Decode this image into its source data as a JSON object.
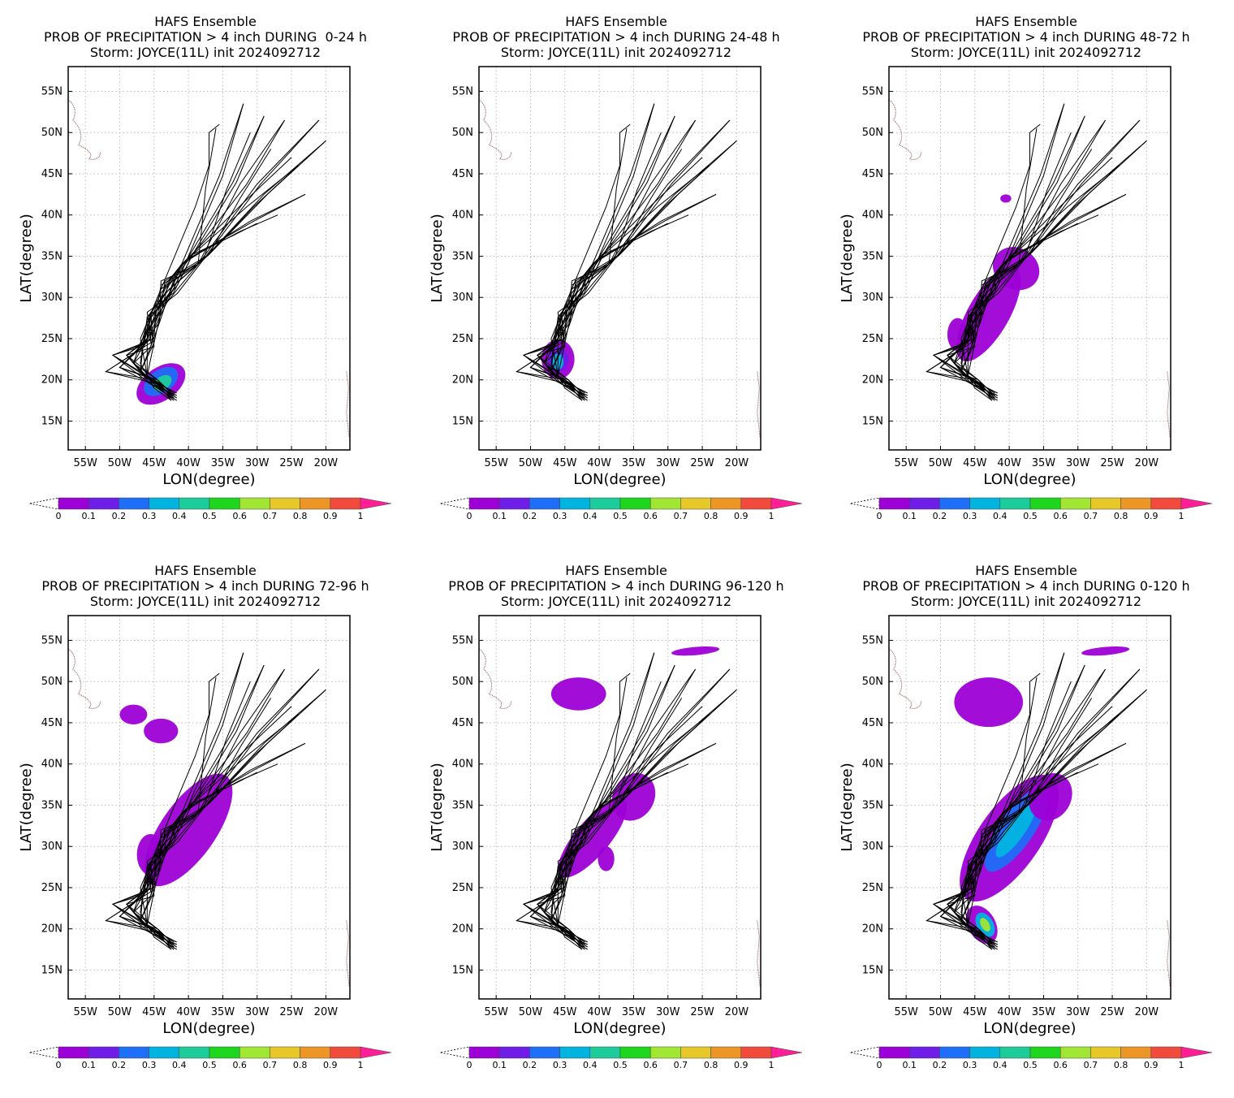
{
  "common": {
    "title_line1": "HAFS Ensemble",
    "title_line3": "Storm: JOYCE(11L) init 2024092712",
    "xlabel": "LON(degree)",
    "ylabel": "LAT(degree)",
    "lat_ticks": [
      "55N",
      "50N",
      "45N",
      "40N",
      "35N",
      "30N",
      "25N",
      "20N",
      "15N"
    ],
    "lon_ticks": [
      "55W",
      "50W",
      "45W",
      "40W",
      "35W",
      "30W",
      "25W",
      "20W"
    ],
    "colorbar_labels": [
      "0",
      "0.1",
      "0.2",
      "0.3",
      "0.4",
      "0.5",
      "0.6",
      "0.7",
      "0.8",
      "0.9",
      "1"
    ],
    "colorbar_colors": [
      "#9d00d6",
      "#6e1ee6",
      "#1f6ef7",
      "#00b4e0",
      "#1ccc9a",
      "#1fd61f",
      "#a0e632",
      "#e6c828",
      "#ec9628",
      "#f04b3c",
      "#ff1e96"
    ]
  },
  "panels": [
    {
      "title_line2": "PROB OF PRECIPITATION > 4 inch DURING  0-24 h"
    },
    {
      "title_line2": "PROB OF PRECIPITATION > 4 inch DURING 24-48 h"
    },
    {
      "title_line2": "PROB OF PRECIPITATION > 4 inch DURING 48-72 h"
    },
    {
      "title_line2": "PROB OF PRECIPITATION > 4 inch DURING 72-96 h"
    },
    {
      "title_line2": "PROB OF PRECIPITATION > 4 inch DURING 96-120 h"
    },
    {
      "title_line2": "PROB OF PRECIPITATION > 4 inch DURING 0-120 h"
    }
  ]
}
